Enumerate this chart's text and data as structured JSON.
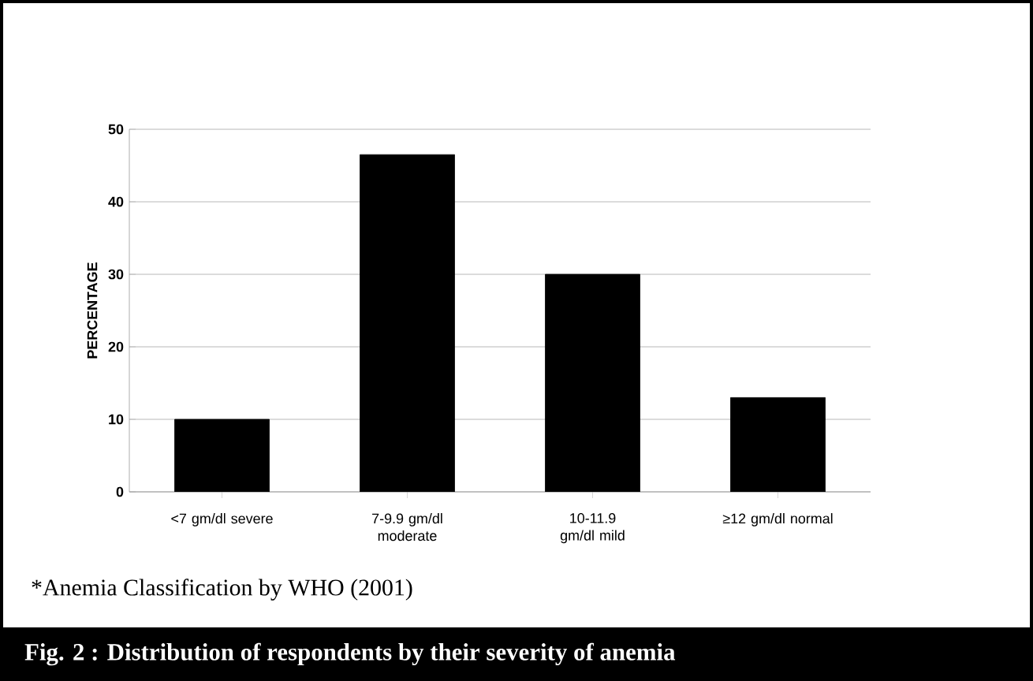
{
  "chart_data": {
    "type": "bar",
    "title": "Fig. 2 : Distribution of respondents by their severity of anemia",
    "ylabel": "PERCENTAGE",
    "categories": [
      "<7 gm/dl severe",
      "7-9.9 gm/dl moderate",
      "10-11.9 gm/dl mild",
      "≥12 gm/dl normal"
    ],
    "values": [
      10,
      46.5,
      30,
      13
    ],
    "color": "#000000",
    "ylim": [
      0,
      50
    ],
    "yticks": [
      0,
      10,
      20,
      30,
      40,
      50
    ],
    "grid": "y",
    "annotations": [
      "*Anemia  Classification by WHO (2001)"
    ]
  }
}
